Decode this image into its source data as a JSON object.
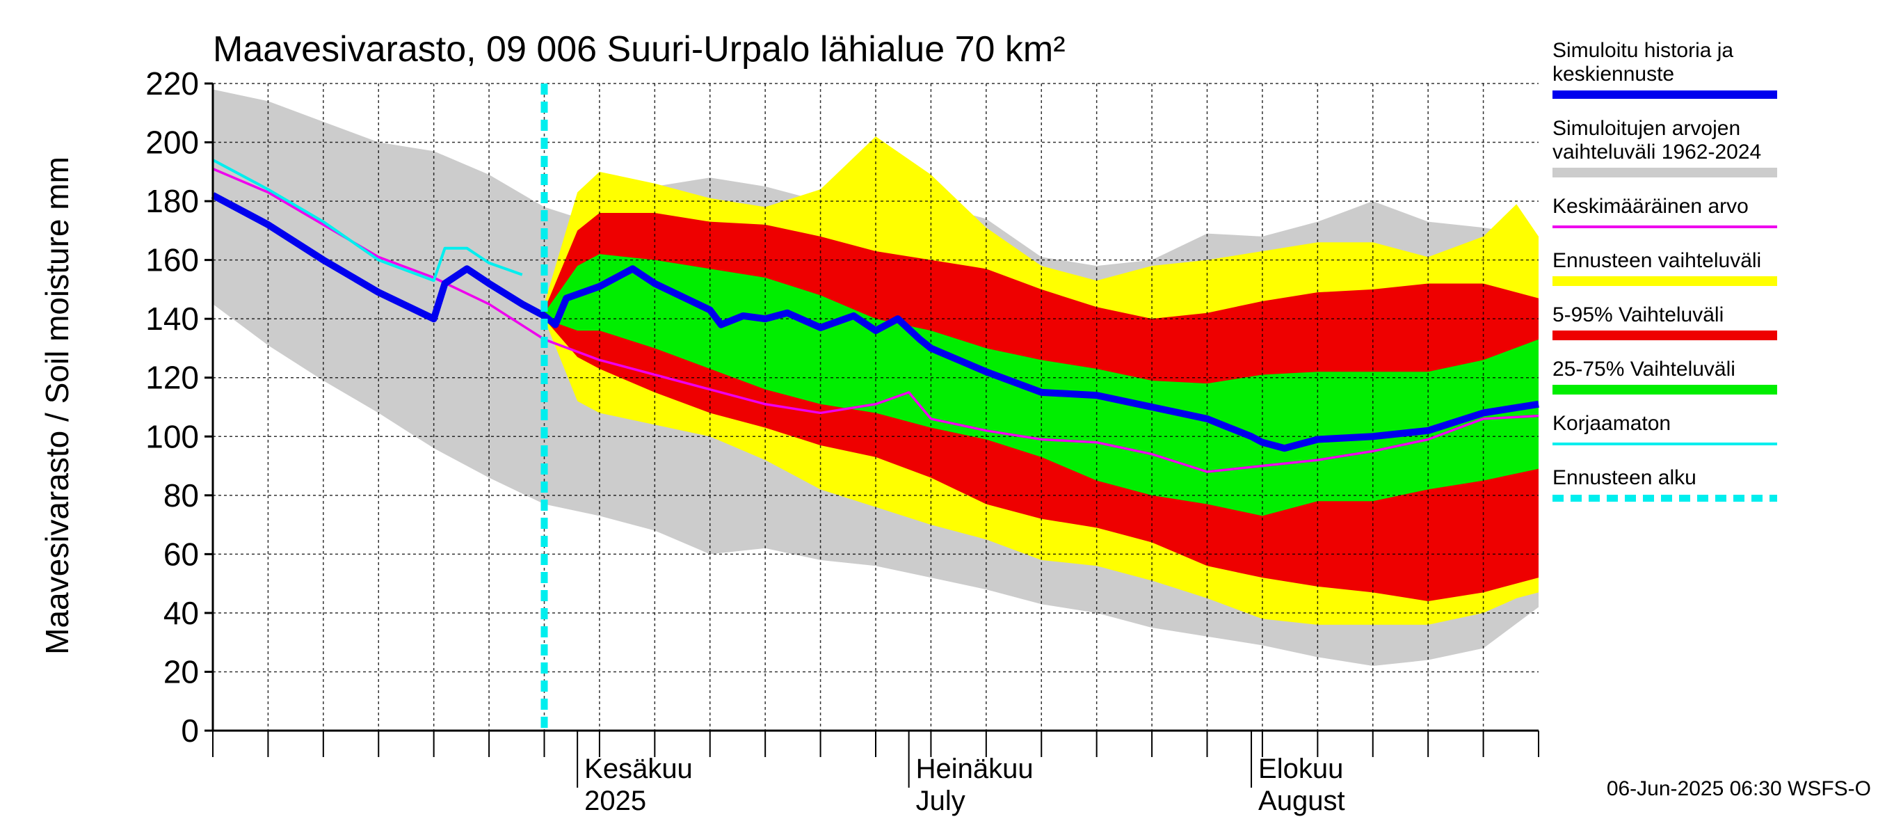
{
  "chart_data": {
    "type": "area",
    "title": "Maavesivarasto, 09 006 Suuri-Urpalo lähialue 70 km²",
    "ylabel": "Maavesivarasto / Soil moisture   mm",
    "xlabel": "",
    "ylim": [
      0,
      220
    ],
    "yticks": [
      0,
      20,
      40,
      60,
      80,
      100,
      120,
      140,
      160,
      180,
      200,
      220
    ],
    "xrange_days": [
      0,
      120
    ],
    "x_unit": "days since 2025-04-29",
    "month_labels": [
      {
        "x": 33,
        "line1": "Kesäkuu",
        "line2": "2025"
      },
      {
        "x": 63,
        "line1": "Heinäkuu",
        "line2": "July"
      },
      {
        "x": 94,
        "line1": "Elokuu",
        "line2": "August"
      }
    ],
    "forecast_start_day": 30,
    "timestamp": "06-Jun-2025 06:30 WSFS-O",
    "legend": [
      {
        "label": "Simuloitu historia ja",
        "label2": "keskiennuste",
        "color": "#0000ee",
        "kind": "line-thick"
      },
      {
        "label": "Simuloitujen arvojen",
        "label2": "vaihteluväli 1962-2024",
        "color": "#cccccc",
        "kind": "band"
      },
      {
        "label": "Keskimääräinen arvo",
        "color": "#ee00ee",
        "kind": "line"
      },
      {
        "label": "Ennusteen vaihteluväli",
        "color": "#ffff00",
        "kind": "band"
      },
      {
        "label": "5-95% Vaihteluväli",
        "color": "#ee0000",
        "kind": "band"
      },
      {
        "label": "25-75% Vaihteluväli",
        "color": "#00ee00",
        "kind": "band"
      },
      {
        "label": "Korjaamaton",
        "color": "#00eeee",
        "kind": "line"
      },
      {
        "label": "Ennusteen alku",
        "color": "#00eeee",
        "kind": "dashed"
      }
    ],
    "series": [
      {
        "name": "Simuloitujen arvojen vaihteluväli 1962-2024",
        "color": "#cccccc",
        "x": [
          0,
          5,
          10,
          15,
          20,
          25,
          30,
          35,
          40,
          45,
          50,
          55,
          60,
          65,
          70,
          75,
          80,
          85,
          90,
          95,
          100,
          105,
          110,
          115,
          120
        ],
        "upper": [
          218,
          214,
          207,
          200,
          197,
          189,
          178,
          172,
          185,
          188,
          185,
          180,
          182,
          179,
          174,
          161,
          158,
          160,
          169,
          168,
          173,
          180,
          173,
          171,
          168
        ],
        "lower": [
          145,
          131,
          119,
          108,
          96,
          86,
          77,
          73,
          68,
          60,
          62,
          58,
          56,
          52,
          48,
          43,
          40,
          35,
          32,
          29,
          25,
          22,
          24,
          28,
          42
        ]
      },
      {
        "name": "Ennusteen vaihteluväli",
        "color": "#ffff00",
        "x": [
          30,
          33,
          35,
          40,
          45,
          50,
          55,
          60,
          65,
          70,
          75,
          80,
          85,
          90,
          95,
          100,
          105,
          110,
          115,
          118,
          120
        ],
        "upper": [
          145,
          183,
          190,
          186,
          181,
          178,
          184,
          202,
          189,
          171,
          158,
          153,
          158,
          160,
          163,
          166,
          166,
          161,
          168,
          179,
          168
        ],
        "lower": [
          140,
          112,
          108,
          104,
          100,
          92,
          82,
          76,
          70,
          65,
          58,
          56,
          51,
          45,
          38,
          36,
          36,
          36,
          40,
          45,
          47
        ]
      },
      {
        "name": "5-95% Vaihteluväli",
        "color": "#ee0000",
        "x": [
          30,
          33,
          35,
          40,
          45,
          50,
          55,
          60,
          65,
          70,
          75,
          80,
          85,
          90,
          95,
          100,
          105,
          110,
          115,
          120
        ],
        "upper": [
          143,
          170,
          176,
          176,
          173,
          172,
          168,
          163,
          160,
          157,
          150,
          144,
          140,
          142,
          146,
          149,
          150,
          152,
          152,
          147
        ],
        "lower": [
          140,
          127,
          123,
          115,
          108,
          103,
          97,
          93,
          86,
          77,
          72,
          69,
          64,
          56,
          52,
          49,
          47,
          44,
          47,
          52
        ]
      },
      {
        "name": "25-75% Vaihteluväli",
        "color": "#00ee00",
        "x": [
          30,
          33,
          35,
          40,
          45,
          50,
          55,
          60,
          65,
          70,
          75,
          80,
          85,
          90,
          95,
          100,
          105,
          110,
          115,
          120
        ],
        "upper": [
          142,
          158,
          162,
          160,
          157,
          154,
          148,
          140,
          136,
          130,
          126,
          123,
          119,
          118,
          121,
          122,
          122,
          122,
          126,
          133
        ],
        "lower": [
          140,
          136,
          136,
          130,
          123,
          116,
          111,
          108,
          103,
          99,
          93,
          85,
          80,
          77,
          73,
          78,
          78,
          82,
          85,
          89
        ]
      },
      {
        "name": "Keskimääräinen arvo",
        "color": "#ee00ee",
        "x": [
          0,
          5,
          10,
          15,
          20,
          25,
          30,
          35,
          40,
          45,
          50,
          55,
          60,
          63,
          65,
          70,
          75,
          80,
          85,
          90,
          95,
          100,
          105,
          110,
          115,
          120
        ],
        "values": [
          191,
          183,
          172,
          161,
          154,
          145,
          133,
          126,
          121,
          116,
          111,
          108,
          111,
          115,
          106,
          102,
          99,
          98,
          94,
          88,
          90,
          92,
          95,
          99,
          106,
          107
        ]
      },
      {
        "name": "Korjaamaton",
        "color": "#00eeee",
        "x": [
          0,
          5,
          10,
          15,
          20,
          21,
          23,
          25,
          28
        ],
        "values": [
          194,
          184,
          173,
          160,
          153,
          164,
          164,
          159,
          155
        ]
      },
      {
        "name": "Simuloitu historia ja keskiennuste",
        "color": "#0000ee",
        "x": [
          0,
          5,
          10,
          15,
          20,
          21,
          23,
          25,
          28,
          30,
          31,
          32,
          35,
          38,
          40,
          45,
          46,
          48,
          50,
          52,
          55,
          58,
          60,
          62,
          64,
          65,
          70,
          75,
          80,
          85,
          90,
          92,
          94,
          95,
          97,
          100,
          105,
          110,
          115,
          120
        ],
        "values": [
          182,
          172,
          160,
          149,
          140,
          152,
          157,
          152,
          145,
          141,
          138,
          147,
          151,
          157,
          152,
          143,
          138,
          141,
          140,
          142,
          137,
          141,
          136,
          140,
          133,
          130,
          122,
          115,
          114,
          110,
          106,
          103,
          100,
          98,
          96,
          99,
          100,
          102,
          108,
          111
        ]
      }
    ]
  }
}
